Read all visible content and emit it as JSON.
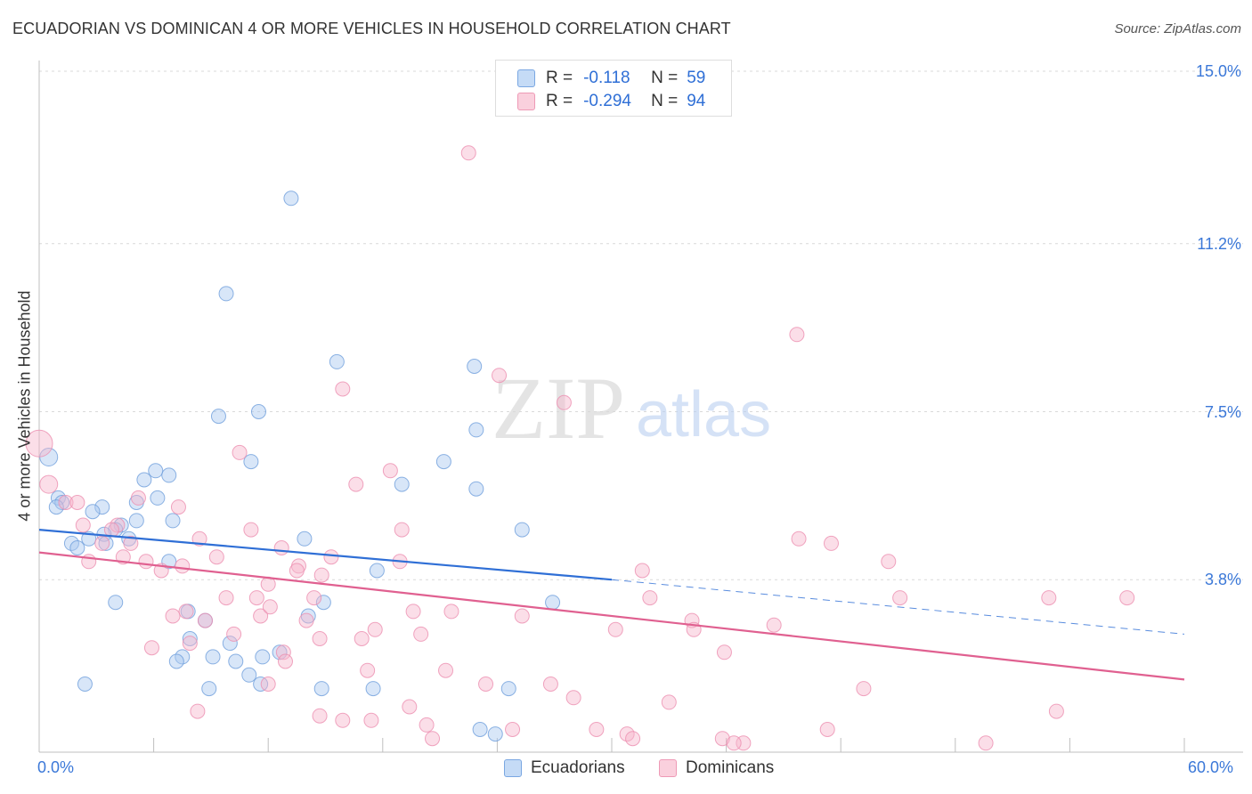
{
  "header": {
    "title": "ECUADORIAN VS DOMINICAN 4 OR MORE VEHICLES IN HOUSEHOLD CORRELATION CHART",
    "source": "Source: ZipAtlas.com"
  },
  "legend": {
    "r_label": "R =",
    "n_label": "N =",
    "series": [
      {
        "r": "-0.118",
        "n": "59"
      },
      {
        "r": "-0.294",
        "n": "94"
      }
    ]
  },
  "watermark": {
    "zip": "ZIP",
    "atlas": "atlas"
  },
  "chart_data": {
    "type": "scatter",
    "title": "ECUADORIAN VS DOMINICAN 4 OR MORE VEHICLES IN HOUSEHOLD CORRELATION CHART",
    "ylabel": "4 or more Vehicles in Household",
    "xlabel": "",
    "xlim": [
      0,
      60
    ],
    "ylim": [
      0,
      15
    ],
    "x_tick_labels": [
      "0.0%",
      "60.0%"
    ],
    "y_ticks": [
      3.8,
      7.5,
      11.2,
      15.0
    ],
    "y_tick_labels": [
      "3.8%",
      "7.5%",
      "11.2%",
      "15.0%"
    ],
    "grid": true,
    "legend_position": "bottom-center",
    "colors": {
      "Ecuadorians": "#a8c8f0",
      "Dominicans": "#f6b6cb",
      "Ecuadorians_line": "#2f6fd6",
      "Dominicans_line": "#e06090"
    },
    "series": [
      {
        "name": "Ecuadorians",
        "r": -0.118,
        "n": 59,
        "trend": {
          "x0": 0,
          "y0": 4.9,
          "x1": 30,
          "y1": 3.8,
          "dashed_to": 60,
          "dashed_y": 2.6
        },
        "points": [
          [
            0.5,
            6.5
          ],
          [
            13.2,
            12.2
          ],
          [
            9.8,
            10.1
          ],
          [
            15.6,
            8.6
          ],
          [
            22.8,
            8.5
          ],
          [
            9.4,
            7.4
          ],
          [
            11.5,
            7.5
          ],
          [
            22.9,
            7.1
          ],
          [
            11.1,
            6.4
          ],
          [
            21.2,
            6.4
          ],
          [
            6.1,
            6.2
          ],
          [
            6.8,
            6.1
          ],
          [
            5.5,
            6.0
          ],
          [
            19.0,
            5.9
          ],
          [
            22.9,
            5.8
          ],
          [
            1.0,
            5.6
          ],
          [
            1.2,
            5.5
          ],
          [
            0.9,
            5.4
          ],
          [
            3.3,
            5.4
          ],
          [
            6.2,
            5.6
          ],
          [
            5.1,
            5.5
          ],
          [
            2.8,
            5.3
          ],
          [
            5.1,
            5.1
          ],
          [
            7.0,
            5.1
          ],
          [
            4.3,
            5.0
          ],
          [
            4.0,
            4.9
          ],
          [
            3.4,
            4.8
          ],
          [
            25.3,
            4.9
          ],
          [
            2.6,
            4.7
          ],
          [
            4.7,
            4.7
          ],
          [
            13.9,
            4.7
          ],
          [
            3.5,
            4.6
          ],
          [
            1.7,
            4.6
          ],
          [
            2.0,
            4.5
          ],
          [
            6.8,
            4.2
          ],
          [
            17.7,
            4.0
          ],
          [
            4.0,
            3.3
          ],
          [
            14.9,
            3.3
          ],
          [
            26.9,
            3.3
          ],
          [
            7.8,
            3.1
          ],
          [
            14.1,
            3.0
          ],
          [
            8.7,
            2.9
          ],
          [
            7.9,
            2.5
          ],
          [
            10.0,
            2.4
          ],
          [
            12.6,
            2.2
          ],
          [
            7.5,
            2.1
          ],
          [
            9.1,
            2.1
          ],
          [
            11.7,
            2.1
          ],
          [
            7.2,
            2.0
          ],
          [
            10.3,
            2.0
          ],
          [
            11.0,
            1.7
          ],
          [
            2.4,
            1.5
          ],
          [
            11.6,
            1.5
          ],
          [
            14.8,
            1.4
          ],
          [
            17.5,
            1.4
          ],
          [
            8.9,
            1.4
          ],
          [
            24.6,
            1.4
          ],
          [
            23.1,
            0.5
          ],
          [
            23.9,
            0.4
          ]
        ]
      },
      {
        "name": "Dominicans",
        "r": -0.294,
        "n": 94,
        "trend": {
          "x0": 0,
          "y0": 4.4,
          "x1": 60,
          "y1": 1.6
        },
        "points": [
          [
            0.0,
            6.8
          ],
          [
            22.5,
            13.2
          ],
          [
            39.7,
            9.2
          ],
          [
            24.1,
            8.3
          ],
          [
            15.9,
            8.0
          ],
          [
            27.5,
            7.7
          ],
          [
            10.5,
            6.6
          ],
          [
            18.4,
            6.2
          ],
          [
            0.5,
            5.9
          ],
          [
            16.6,
            5.9
          ],
          [
            5.2,
            5.6
          ],
          [
            1.4,
            5.5
          ],
          [
            2.0,
            5.5
          ],
          [
            7.3,
            5.4
          ],
          [
            2.3,
            5.0
          ],
          [
            4.1,
            5.0
          ],
          [
            3.8,
            4.9
          ],
          [
            11.1,
            4.9
          ],
          [
            19.0,
            4.9
          ],
          [
            3.3,
            4.6
          ],
          [
            8.4,
            4.7
          ],
          [
            4.8,
            4.6
          ],
          [
            12.7,
            4.5
          ],
          [
            39.8,
            4.7
          ],
          [
            41.5,
            4.6
          ],
          [
            9.3,
            4.3
          ],
          [
            15.3,
            4.3
          ],
          [
            4.4,
            4.3
          ],
          [
            5.6,
            4.2
          ],
          [
            7.5,
            4.1
          ],
          [
            2.6,
            4.2
          ],
          [
            13.6,
            4.1
          ],
          [
            18.9,
            4.2
          ],
          [
            44.5,
            4.2
          ],
          [
            6.4,
            4.0
          ],
          [
            13.5,
            4.0
          ],
          [
            31.6,
            4.0
          ],
          [
            14.8,
            3.9
          ],
          [
            12.0,
            3.7
          ],
          [
            9.8,
            3.4
          ],
          [
            11.4,
            3.4
          ],
          [
            14.4,
            3.4
          ],
          [
            32.0,
            3.4
          ],
          [
            45.1,
            3.4
          ],
          [
            52.9,
            3.4
          ],
          [
            57.0,
            3.4
          ],
          [
            7.0,
            3.0
          ],
          [
            7.7,
            3.1
          ],
          [
            11.6,
            3.0
          ],
          [
            12.1,
            3.2
          ],
          [
            19.6,
            3.1
          ],
          [
            21.6,
            3.1
          ],
          [
            25.3,
            3.0
          ],
          [
            8.7,
            2.9
          ],
          [
            14.0,
            2.9
          ],
          [
            34.2,
            2.9
          ],
          [
            30.2,
            2.7
          ],
          [
            34.3,
            2.7
          ],
          [
            38.5,
            2.8
          ],
          [
            17.6,
            2.7
          ],
          [
            10.2,
            2.6
          ],
          [
            16.9,
            2.5
          ],
          [
            20.0,
            2.6
          ],
          [
            7.9,
            2.4
          ],
          [
            14.7,
            2.5
          ],
          [
            5.9,
            2.3
          ],
          [
            12.8,
            2.2
          ],
          [
            35.9,
            2.2
          ],
          [
            12.9,
            2.0
          ],
          [
            17.2,
            1.8
          ],
          [
            21.3,
            1.8
          ],
          [
            23.4,
            1.5
          ],
          [
            26.8,
            1.5
          ],
          [
            12.0,
            1.5
          ],
          [
            43.2,
            1.4
          ],
          [
            28.0,
            1.2
          ],
          [
            33.0,
            1.1
          ],
          [
            19.4,
            1.0
          ],
          [
            8.3,
            0.9
          ],
          [
            14.7,
            0.8
          ],
          [
            17.4,
            0.7
          ],
          [
            15.9,
            0.7
          ],
          [
            20.3,
            0.6
          ],
          [
            24.8,
            0.5
          ],
          [
            29.2,
            0.5
          ],
          [
            30.8,
            0.4
          ],
          [
            31.1,
            0.3
          ],
          [
            35.8,
            0.3
          ],
          [
            41.3,
            0.5
          ],
          [
            53.3,
            0.9
          ],
          [
            36.9,
            0.2
          ],
          [
            36.4,
            0.2
          ],
          [
            49.6,
            0.2
          ],
          [
            20.6,
            0.3
          ]
        ]
      }
    ]
  }
}
